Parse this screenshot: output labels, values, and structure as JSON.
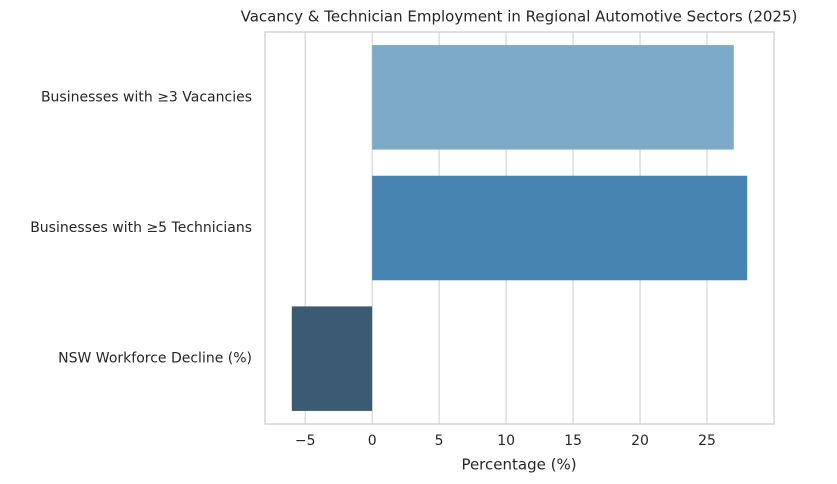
{
  "chart_data": {
    "type": "barh",
    "title": "Vacancy & Technician Employment in Regional Automotive Sectors (2025)",
    "categories": [
      "Businesses with ≥3 Vacancies",
      "Businesses with ≥5 Technicians",
      "NSW Workforce Decline (%)"
    ],
    "values": [
      27,
      28,
      -6
    ],
    "colors": [
      "#7eaac9",
      "#4884b2",
      "#3b5b74"
    ],
    "xlabel": "Percentage (%)",
    "xlim": [
      -8,
      30
    ],
    "xticks": [
      {
        "value": -5,
        "label": "−5"
      },
      0,
      5,
      10,
      15,
      20,
      25
    ],
    "grid": true
  }
}
